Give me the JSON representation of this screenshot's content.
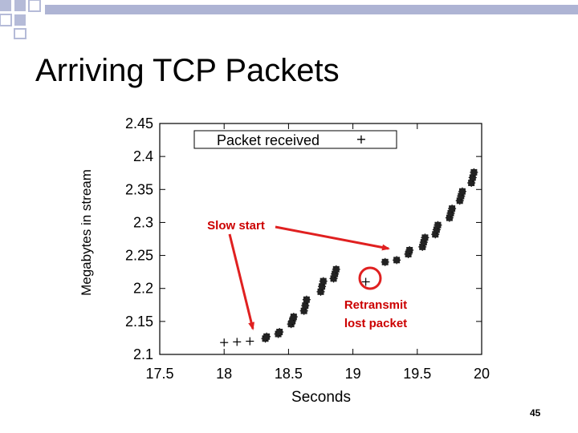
{
  "slide": {
    "title": "Arriving TCP Packets",
    "page_number": "45"
  },
  "colors": {
    "deco_squares": "#b5bbd8",
    "header_bar": "#aeb4d4",
    "arrow_red": "#e02020",
    "annotation_red": "#cc0000"
  },
  "chart_data": {
    "type": "scatter",
    "xlabel": "Seconds",
    "ylabel": "Megabytes in stream",
    "xlim": [
      17.5,
      20
    ],
    "ylim": [
      2.1,
      2.45
    ],
    "xticks": [
      "17.5",
      "18",
      "18.5",
      "19",
      "19.5",
      "20"
    ],
    "yticks": [
      "2.45",
      "2.4",
      "2.35",
      "2.3",
      "2.25",
      "2.2",
      "2.15",
      "2.1"
    ],
    "grid": false,
    "legend_position": "top-center",
    "series": [
      {
        "name": "Packet received",
        "marker": "+",
        "x": [
          18.0,
          18.1,
          18.2,
          18.32,
          18.33,
          18.42,
          18.43,
          18.52,
          18.53,
          18.54,
          18.62,
          18.63,
          18.64,
          18.75,
          18.76,
          18.77,
          18.85,
          18.86,
          18.87,
          19.1,
          19.25,
          19.34,
          19.43,
          19.44,
          19.54,
          19.55,
          19.56,
          19.64,
          19.65,
          19.66,
          19.75,
          19.76,
          19.77,
          19.83,
          19.84,
          19.85,
          19.92,
          19.93,
          19.94
        ],
        "y": [
          2.118,
          2.119,
          2.12,
          2.124,
          2.127,
          2.131,
          2.134,
          2.146,
          2.151,
          2.157,
          2.166,
          2.174,
          2.183,
          2.195,
          2.203,
          2.211,
          2.215,
          2.222,
          2.229,
          2.21,
          2.24,
          2.243,
          2.252,
          2.258,
          2.263,
          2.27,
          2.277,
          2.282,
          2.289,
          2.296,
          2.307,
          2.314,
          2.321,
          2.333,
          2.34,
          2.347,
          2.36,
          2.368,
          2.376
        ]
      }
    ],
    "annotations": [
      {
        "text": "Slow start"
      },
      {
        "text": "Retransmit"
      },
      {
        "text": "lost packet"
      }
    ]
  }
}
